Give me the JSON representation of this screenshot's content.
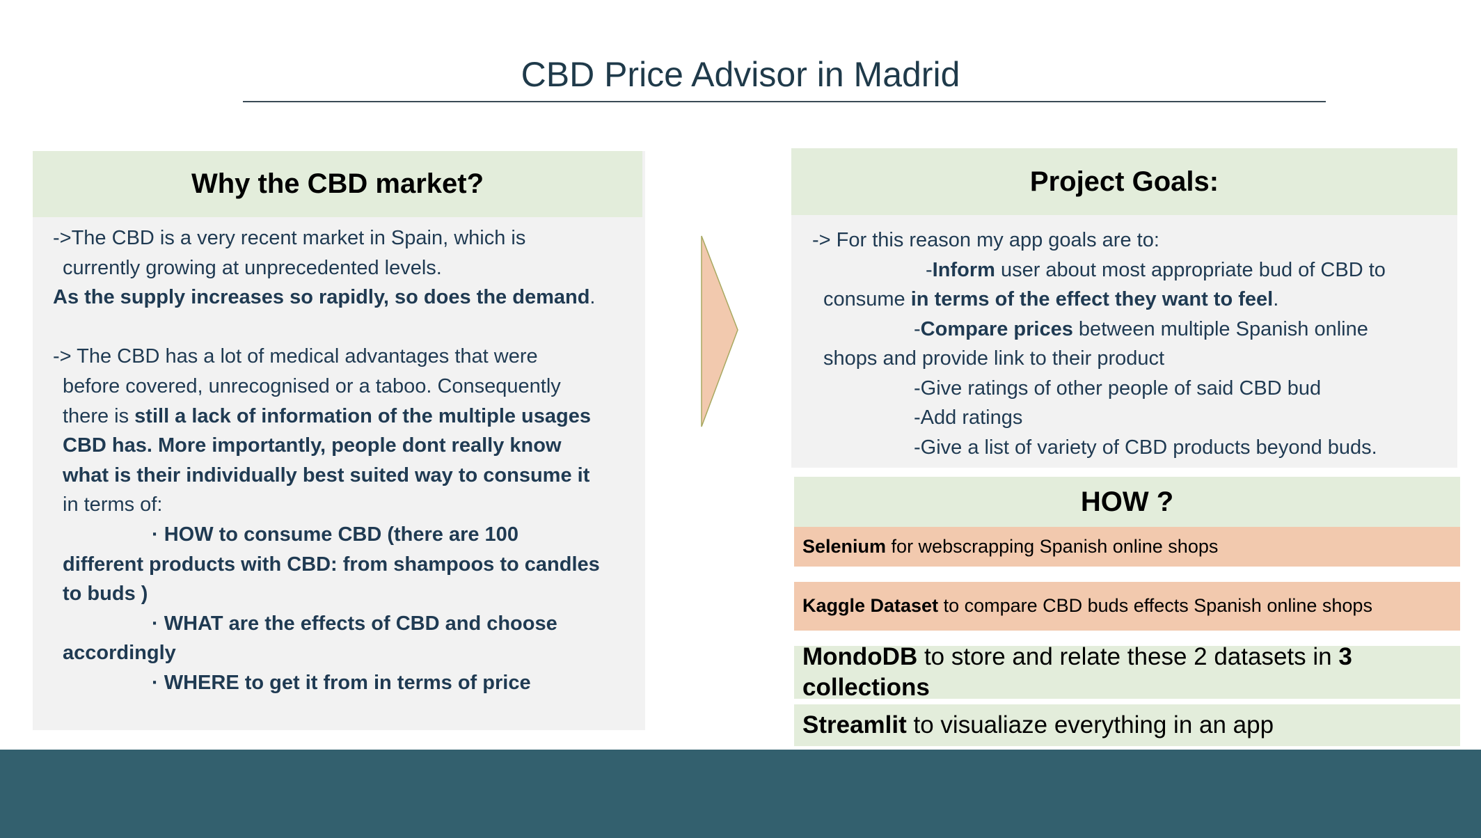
{
  "title": "CBD Price Advisor in Madrid",
  "left_panel": {
    "heading": "Why the CBD market?",
    "lines": [
      [
        {
          "text": "->The CBD is a very recent market in Spain, which is",
          "bold": false
        }
      ],
      [
        {
          "text": "currently growing at unprecedented levels.",
          "bold": false
        }
      ],
      [
        {
          "text": "As the supply increases so rapidly, so does the demand",
          "bold": true
        },
        {
          "text": ".",
          "bold": false
        }
      ],
      [],
      [
        {
          "text": "-> The CBD has a lot of medical advantages that were",
          "bold": false
        }
      ],
      [
        {
          "text": "before covered, unrecognised or a taboo. Consequently",
          "bold": false
        }
      ],
      [
        {
          "text": "there is ",
          "bold": false
        },
        {
          "text": "still a lack of information of the multiple usages",
          "bold": true
        }
      ],
      [
        {
          "text": "CBD has. More importantly, people dont really know",
          "bold": true
        }
      ],
      [
        {
          "text": "what is their individually best suited way to consume it",
          "bold": true
        }
      ],
      [
        {
          "text": "in terms of:",
          "bold": false
        }
      ],
      [
        {
          "text": "· HOW to consume CBD (there are 100",
          "bold": true
        }
      ],
      [
        {
          "text": "different products with CBD: from shampoos to candles",
          "bold": true
        }
      ],
      [
        {
          "text": "to buds )",
          "bold": true
        }
      ],
      [
        {
          "text": "· WHAT are the effects of CBD and choose",
          "bold": true
        }
      ],
      [
        {
          "text": "accordingly",
          "bold": true
        }
      ],
      [
        {
          "text": "· WHERE to get it from in terms of price",
          "bold": true
        }
      ]
    ]
  },
  "goals_panel": {
    "heading": "Project Goals:",
    "lines": [
      [
        {
          "text": "-> For this reason my app goals are to:",
          "bold": false
        }
      ],
      [
        {
          "text": "-",
          "bold": false
        },
        {
          "text": "Inform",
          "bold": true
        },
        {
          "text": " user about most appropriate bud of CBD to",
          "bold": false
        }
      ],
      [
        {
          "text": "consume ",
          "bold": false
        },
        {
          "text": "in terms of the effect they want to feel",
          "bold": true
        },
        {
          "text": ".",
          "bold": false
        }
      ],
      [
        {
          "text": "-",
          "bold": false
        },
        {
          "text": "Compare prices",
          "bold": true
        },
        {
          "text": " between multiple Spanish online",
          "bold": false
        }
      ],
      [
        {
          "text": "shops and provide link to their product",
          "bold": false
        }
      ],
      [
        {
          "text": "-Give ratings of other people of said CBD bud",
          "bold": false
        }
      ],
      [
        {
          "text": "-Add ratings",
          "bold": false
        }
      ],
      [
        {
          "text": "-Give a list of variety of CBD products beyond buds.",
          "bold": false
        }
      ]
    ]
  },
  "how_panel": {
    "heading": "HOW ?",
    "items": [
      [
        {
          "text": "Selenium",
          "bold": true
        },
        {
          "text": " for webscrapping Spanish online shops",
          "bold": false
        }
      ],
      [
        {
          "text": "Kaggle Dataset",
          "bold": true
        },
        {
          "text": " to compare CBD buds effects Spanish online shops",
          "bold": false
        }
      ],
      [
        {
          "text": "MondoDB",
          "bold": true
        },
        {
          "text": " to store and relate these 2 datasets in ",
          "bold": false
        },
        {
          "text": "3 collections",
          "bold": true
        }
      ],
      [
        {
          "text": "Streamlit",
          "bold": true
        },
        {
          "text": " to visualiaze everything in an app",
          "bold": false
        }
      ]
    ]
  }
}
